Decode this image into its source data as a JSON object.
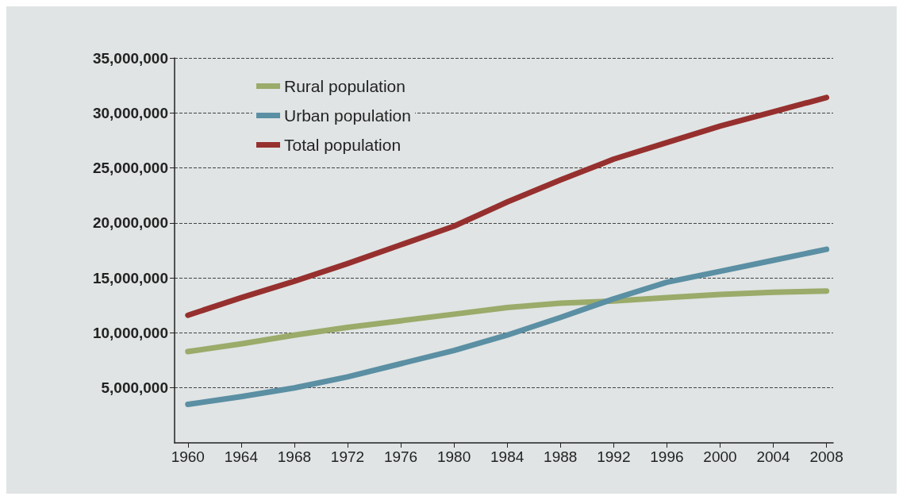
{
  "chart_data": {
    "type": "line",
    "x": [
      1960,
      1964,
      1968,
      1972,
      1976,
      1980,
      1984,
      1988,
      1992,
      1996,
      2000,
      2004,
      2008
    ],
    "series": [
      {
        "name": "Rural population",
        "color": "#9aab6a",
        "values": [
          8300000,
          9000000,
          9800000,
          10500000,
          11100000,
          11700000,
          12300000,
          12700000,
          12900000,
          13200000,
          13500000,
          13700000,
          13800000
        ]
      },
      {
        "name": "Urban population",
        "color": "#5b8fa3",
        "values": [
          3500000,
          4200000,
          5000000,
          6000000,
          7200000,
          8400000,
          9800000,
          11400000,
          13100000,
          14600000,
          15600000,
          16600000,
          17600000
        ]
      },
      {
        "name": "Total population",
        "color": "#96302e",
        "values": [
          11600000,
          13200000,
          14700000,
          16300000,
          18000000,
          19700000,
          21900000,
          23900000,
          25800000,
          27300000,
          28800000,
          30100000,
          31400000
        ]
      }
    ],
    "xlim": [
      1959,
      2008.5
    ],
    "xticks": [
      1960,
      1964,
      1968,
      1972,
      1976,
      1980,
      1984,
      1988,
      1992,
      1996,
      2000,
      2004,
      2008
    ],
    "ylim": [
      0,
      35000000
    ],
    "yticks": [
      {
        "value": 5000000,
        "label": "5,000,000"
      },
      {
        "value": 10000000,
        "label": "10,000,000"
      },
      {
        "value": 15000000,
        "label": "15,000,000"
      },
      {
        "value": 20000000,
        "label": "20,000,000"
      },
      {
        "value": 25000000,
        "label": "25,000,000"
      },
      {
        "value": 30000000,
        "label": "30,000,000"
      },
      {
        "value": 35000000,
        "label": "35,000,000"
      }
    ],
    "grid": "y",
    "legend": "top left",
    "marker": "none"
  }
}
